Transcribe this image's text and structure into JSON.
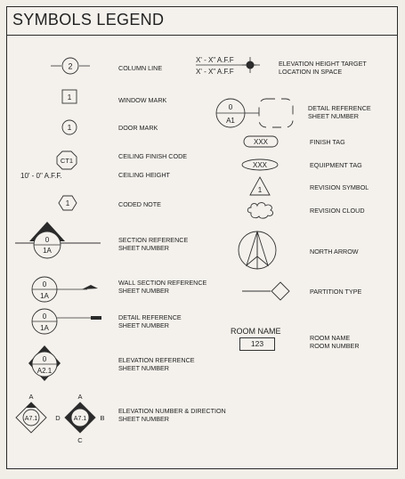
{
  "title": "SYMBOLS LEGEND",
  "left_items": {
    "column_line": {
      "symbol": "2",
      "label": "COLUMN LINE"
    },
    "window_mark": {
      "symbol": "1",
      "label": "WINDOW MARK"
    },
    "door_mark": {
      "symbol": "1",
      "label": "DOOR MARK"
    },
    "ceiling_finish_code": {
      "symbol": "CT1",
      "label": "CEILING FINISH CODE"
    },
    "ceiling_height": {
      "symbol": "10' - 0\" A.F.F.",
      "label": "CEILING HEIGHT"
    },
    "coded_note": {
      "symbol": "1",
      "label": "CODED NOTE"
    },
    "section_reference": {
      "top": "0",
      "bottom": "1A",
      "label_1": "SECTION REFERENCE",
      "label_2": "SHEET NUMBER"
    },
    "wall_section_reference": {
      "top": "0",
      "bottom": "1A",
      "label_1": "WALL SECTION REFERENCE",
      "label_2": "SHEET NUMBER"
    },
    "detail_reference_left": {
      "top": "0",
      "bottom": "1A",
      "label_1": "DETAIL REFERENCE",
      "label_2": "SHEET NUMBER"
    },
    "elevation_reference": {
      "top": "0",
      "bottom": "A2.1",
      "label_1": "ELEVATION REFERENCE",
      "label_2": "SHEET NUMBER"
    },
    "elevation_number_direction": {
      "single": {
        "top": "A",
        "center": "A7.1"
      },
      "multi": {
        "top": "A",
        "left": "D",
        "center": "A7.1",
        "right": "B",
        "bottom": "C"
      },
      "label_1": "ELEVATION NUMBER & DIRECTION",
      "label_2": "SHEET NUMBER"
    }
  },
  "right_items": {
    "elevation_height_target": {
      "line_1": "X' - X\" A.F.F",
      "line_2": "X' - X\" A.F.F",
      "label_1": "ELEVATION HEIGHT TARGET",
      "label_2": "LOCATION IN SPACE"
    },
    "detail_reference": {
      "top": "0",
      "bottom": "A1",
      "label_1": "DETAIL REFERENCE",
      "label_2": "SHEET NUMBER"
    },
    "finish_tag": {
      "symbol": "XXX",
      "label": "FINISH TAG"
    },
    "equipment_tag": {
      "symbol": "XXX",
      "label": "EQUIPMENT TAG"
    },
    "revision_symbol": {
      "symbol": "1",
      "label": "REVISION SYMBOL"
    },
    "revision_cloud": {
      "label": "REVISION CLOUD"
    },
    "north_arrow": {
      "label": "NORTH ARROW"
    },
    "partition_type": {
      "label": "PARTITION TYPE"
    },
    "room": {
      "name": "ROOM NAME",
      "number": "123",
      "label_1": "ROOM NAME",
      "label_2": "ROOM NUMBER"
    }
  }
}
